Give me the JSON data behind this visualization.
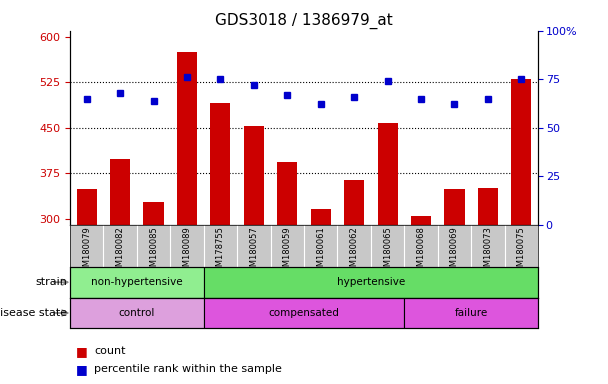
{
  "title": "GDS3018 / 1386979_at",
  "samples": [
    "GSM180079",
    "GSM180082",
    "GSM180085",
    "GSM180089",
    "GSM178755",
    "GSM180057",
    "GSM180059",
    "GSM180061",
    "GSM180062",
    "GSM180065",
    "GSM180068",
    "GSM180069",
    "GSM180073",
    "GSM180075"
  ],
  "counts": [
    348,
    398,
    328,
    575,
    490,
    453,
    393,
    315,
    363,
    458,
    305,
    348,
    350,
    530
  ],
  "percentiles": [
    65,
    68,
    64,
    76,
    75,
    72,
    67,
    62,
    66,
    74,
    65,
    62,
    65,
    75
  ],
  "ylim_left": [
    290,
    610
  ],
  "ylim_right": [
    0,
    100
  ],
  "yticks_left": [
    300,
    375,
    450,
    525,
    600
  ],
  "yticks_right": [
    0,
    25,
    50,
    75,
    100
  ],
  "bar_color": "#cc0000",
  "dot_color": "#0000cc",
  "strain_groups": [
    {
      "label": "non-hypertensive",
      "start": 0,
      "end": 4,
      "color": "#90ee90"
    },
    {
      "label": "hypertensive",
      "start": 4,
      "end": 14,
      "color": "#66dd66"
    }
  ],
  "disease_groups": [
    {
      "label": "control",
      "start": 0,
      "end": 4,
      "color": "#dda0dd"
    },
    {
      "label": "compensated",
      "start": 4,
      "end": 10,
      "color": "#dd55dd"
    },
    {
      "label": "failure",
      "start": 10,
      "end": 14,
      "color": "#dd55dd"
    }
  ],
  "strain_label": "strain",
  "disease_label": "disease state",
  "legend_count": "count",
  "legend_percentile": "percentile rank within the sample",
  "tick_color_left": "#cc0000",
  "tick_color_right": "#0000cc",
  "xtick_bg": "#c8c8c8"
}
